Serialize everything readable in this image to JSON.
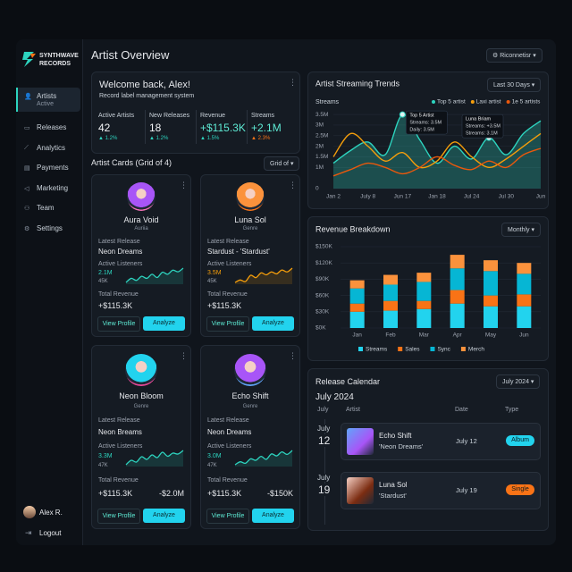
{
  "sidebar": {
    "brand": [
      "SYNTHWAVE",
      "RECORDS"
    ],
    "nav": [
      {
        "label": "Artists",
        "sub": "Active"
      },
      {
        "label": "Releases"
      },
      {
        "label": "Analytics"
      },
      {
        "label": "Payments"
      },
      {
        "label": "Marketing"
      },
      {
        "label": "Team"
      },
      {
        "label": "Settings"
      }
    ],
    "user": "Alex R.",
    "logout": "Logout"
  },
  "header": {
    "title": "Artist Overview",
    "button": "Riconnetisr"
  },
  "welcome": {
    "title": "Welcome back, Alex!",
    "subtitle": "Record label management system",
    "stats": [
      {
        "label": "Active Artists",
        "value": "42",
        "change": "▲ 1.2%"
      },
      {
        "label": "New Releases",
        "value": "18",
        "change": "▲ 1.2%"
      },
      {
        "label": "Revenue",
        "value": "+$115.3K",
        "change": "▲ 1.5%"
      },
      {
        "label": "Streams",
        "value": "+2.1M",
        "change": "▲ 2.3%"
      }
    ]
  },
  "artists": {
    "title": "Artist Cards (Grid of 4)",
    "control": "Grid of",
    "view_label": "View Profile",
    "analyze_label": "Analyze",
    "cards": [
      {
        "name": "Aura Void",
        "genre": "Auriia",
        "release_label": "Latest Release",
        "release": "Neon Dreams",
        "listeners_label": "Active Listeners",
        "listeners": "2.1M",
        "listeners_low": "45K",
        "revenue_label": "Total Revenue",
        "revenue": "+$115.3K",
        "spark_color": "#2dd4bf",
        "sparkline": [
          2,
          3,
          2.5,
          3.5,
          3,
          4,
          3.2,
          4.5,
          4,
          5,
          4.6,
          5.5
        ]
      },
      {
        "name": "Luna Sol",
        "genre": "Genre",
        "release_label": "Latest Release",
        "release": "Stardust - 'Stardust'",
        "listeners_label": "Active Listeners",
        "listeners": "3.5M",
        "listeners_low": "45K",
        "revenue_label": "Total Revenue",
        "revenue": "+$115.3K",
        "spark_color": "#f59e0b",
        "sparkline": [
          2,
          2.5,
          2.2,
          3.5,
          3,
          4,
          3.6,
          4.2,
          3.8,
          4.6,
          4.2,
          5
        ]
      },
      {
        "name": "Neon Bloom",
        "genre": "Genre",
        "release_label": "Latest Release",
        "release": "Neon Breams",
        "listeners_label": "Active Listeners",
        "listeners": "3.3M",
        "listeners_low": "47K",
        "revenue_label": "Total Revenue",
        "revenue": "+$115.3K",
        "revenue_extra": "-$2.0M",
        "spark_color": "#2dd4bf",
        "sparkline": [
          2,
          3,
          2.6,
          3.8,
          3.2,
          4.2,
          3.6,
          4.8,
          3.9,
          4.6,
          4.4,
          5.2
        ]
      },
      {
        "name": "Echo Shift",
        "genre": "Genre",
        "release_label": "Latest Release",
        "release": "Neon Dreams",
        "listeners_label": "Active Listeners",
        "listeners": "3.0M",
        "listeners_low": "47K",
        "revenue_label": "Total Revenue",
        "revenue": "+$115.3K",
        "revenue_extra": "-$150K",
        "spark_color": "#2dd4bf",
        "sparkline": [
          2.2,
          2.8,
          2.5,
          3.4,
          3.1,
          3.9,
          3.3,
          4.4,
          4,
          4.8,
          4.3,
          5.1
        ]
      }
    ]
  },
  "chart_data": [
    {
      "type": "line",
      "title": "Artist Streaming Trends",
      "control": "Last 30 Days",
      "y_label": "Streams",
      "categories": [
        "Jan 2",
        null,
        "July 8",
        null,
        "Jun 17",
        null,
        "Jan 18",
        null,
        "Jul 24",
        null,
        "Jul 30",
        null,
        "Jun"
      ],
      "ylim": [
        0,
        3.8
      ],
      "yticks": [
        0,
        {
          "value": 1,
          "label": "1M"
        },
        {
          "value": 1.5,
          "label": "1.5M"
        },
        {
          "value": 2,
          "label": "2M"
        },
        {
          "value": 2.5,
          "label": "2.5M"
        },
        {
          "value": 3,
          "label": "3M"
        },
        {
          "value": 3.5,
          "label": "3.5M"
        }
      ],
      "series": [
        {
          "name": "Top 5 artist",
          "color": "#2dd4bf",
          "values": [
            1.2,
            1.8,
            2.2,
            1.6,
            3.5,
            2.3,
            1.2,
            2.0,
            1.4,
            2.4,
            1.6,
            2.6,
            3.2
          ]
        },
        {
          "name": "Laxi artist",
          "color": "#f59e0b",
          "values": [
            1.5,
            2.6,
            2.0,
            1.3,
            1.7,
            1.0,
            1.3,
            2.2,
            1.5,
            1.0,
            1.4,
            2.0,
            2.6
          ]
        },
        {
          "name": "1e 5 artists",
          "color": "#ea580c",
          "values": [
            0.6,
            0.9,
            1.2,
            1.0,
            0.7,
            1.0,
            1.5,
            1.1,
            0.9,
            1.3,
            1.0,
            1.6,
            1.9
          ]
        }
      ],
      "annotations": [
        {
          "lines": [
            "Top 5 Artist",
            "Streams: 3.5M",
            "Daily: 3.5M"
          ]
        },
        {
          "lines": [
            "Luna Briam",
            "Streams: +3.5M",
            "Streams: 3.1M"
          ]
        }
      ]
    },
    {
      "type": "stacked_bar",
      "title": "Revenue Breakdown",
      "control": "Monthly",
      "categories": [
        "Jan",
        "Feb",
        "Mar",
        "Apr",
        "May",
        "Jun"
      ],
      "ylim": [
        0,
        150
      ],
      "yticks": [
        {
          "value": 0,
          "label": "$0K"
        },
        {
          "value": 30,
          "label": "$30K"
        },
        {
          "value": 60,
          "label": "$60K"
        },
        {
          "value": 90,
          "label": "$90K"
        },
        {
          "value": 120,
          "label": "$120K"
        },
        {
          "value": 150,
          "label": "$150K"
        }
      ],
      "series": [
        {
          "name": "Streams",
          "color": "#22d3ee",
          "values": [
            30,
            32,
            35,
            45,
            40,
            40
          ]
        },
        {
          "name": "Sales",
          "color": "#f97316",
          "values": [
            15,
            18,
            15,
            25,
            20,
            22
          ]
        },
        {
          "name": "Sync",
          "color": "#06b6d4",
          "values": [
            28,
            30,
            35,
            40,
            45,
            38
          ]
        },
        {
          "name": "Merch",
          "color": "#fb923c",
          "values": [
            15,
            18,
            17,
            25,
            20,
            20
          ]
        }
      ]
    }
  ],
  "calendar": {
    "title": "Release Calendar",
    "control": "July 2024",
    "month": "July 2024",
    "columns": [
      "July",
      "Artist",
      "Date",
      "Type"
    ],
    "rows": [
      {
        "month": "July",
        "day": "12",
        "artist": "Echo Shift",
        "release": "'Neon Dreams'",
        "date": "July 12",
        "type": "Album"
      },
      {
        "month": "July",
        "day": "19",
        "artist": "Luna Sol",
        "release": "'Stardust'",
        "date": "July 19",
        "type": "Single"
      }
    ]
  }
}
